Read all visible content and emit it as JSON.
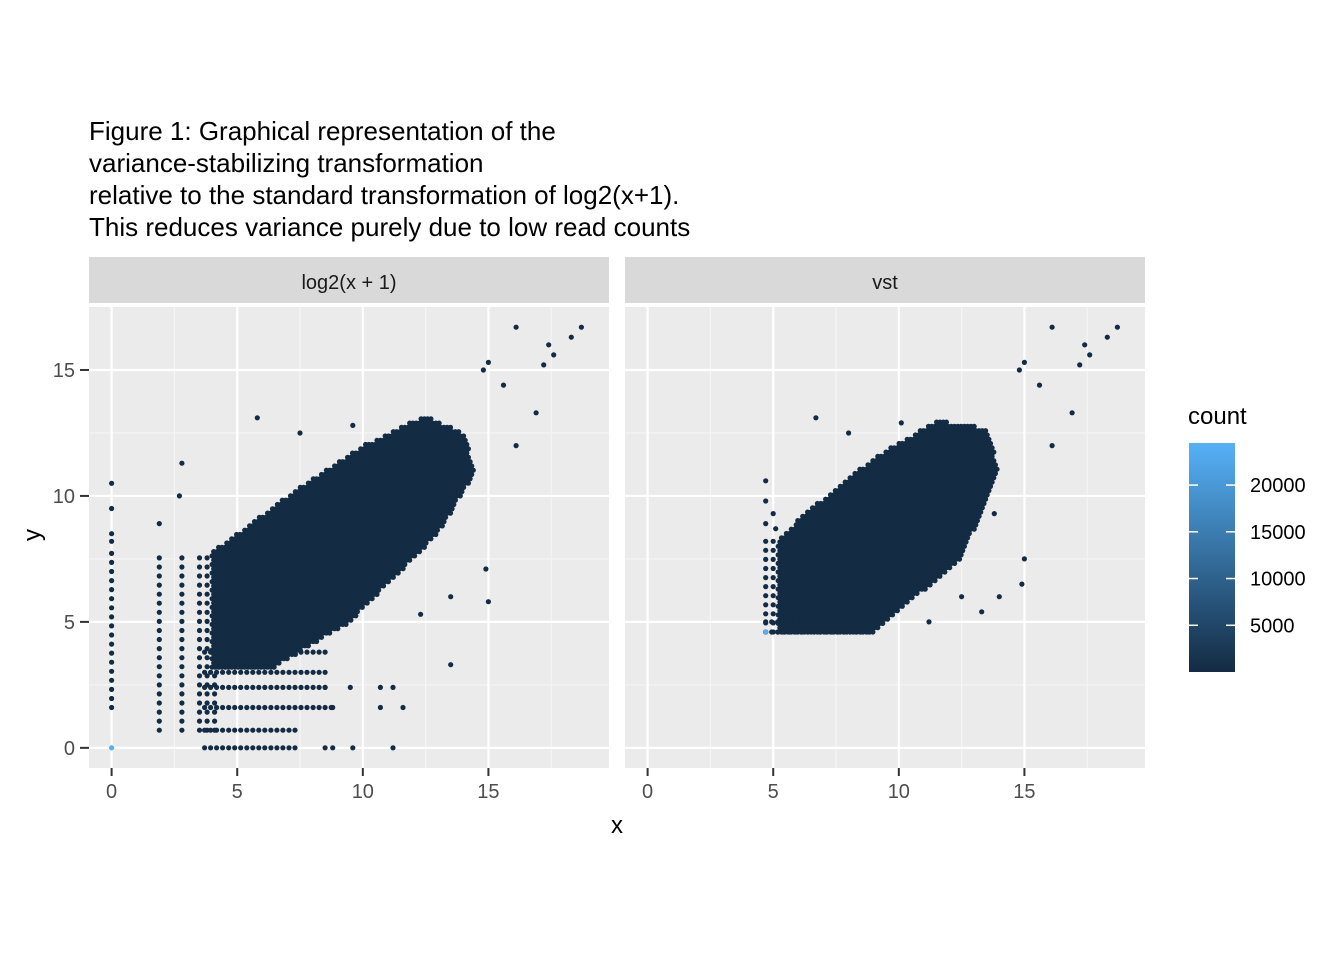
{
  "chart_data": {
    "type": "heatmap",
    "subtype": "hexbin",
    "title_lines": [
      "Figure 1: Graphical representation of the",
      "variance-stabilizing transformation",
      "relative to the standard transformation of log2(x+1).",
      "This reduces variance purely due to low read counts"
    ],
    "xlabel": "x",
    "ylabel": "y",
    "xlim": [
      -0.9,
      19.8
    ],
    "ylim": [
      -0.8,
      17.5
    ],
    "x_ticks": [
      0,
      5,
      10,
      15
    ],
    "y_ticks": [
      0,
      5,
      10,
      15
    ],
    "x_tick_labels": [
      "0",
      "5",
      "10",
      "15"
    ],
    "y_tick_labels": [
      "0",
      "5",
      "10",
      "15"
    ],
    "grid": true,
    "facets": [
      {
        "label": "log2(x + 1)",
        "dense_region": {
          "polygon": [
            [
              4.0,
              3.2
            ],
            [
              6.5,
              3.2
            ],
            [
              9.5,
              5.0
            ],
            [
              13.0,
              8.5
            ],
            [
              14.5,
              11.0
            ],
            [
              14.0,
              12.5
            ],
            [
              12.5,
              13.2
            ],
            [
              10.0,
              12.0
            ],
            [
              7.0,
              10.0
            ],
            [
              5.0,
              8.5
            ],
            [
              4.0,
              7.8
            ]
          ]
        },
        "column_bins_x": [
          0,
          1.9,
          2.8,
          3.5,
          3.8,
          4.1
        ],
        "row_bins_y": [
          0,
          0.7,
          1.6,
          2.4,
          3.0,
          3.8
        ],
        "outliers": [
          [
            0,
            10.5
          ],
          [
            0,
            9.5
          ],
          [
            0,
            8.5
          ],
          [
            0,
            8.2
          ],
          [
            1.9,
            8.9
          ],
          [
            2.8,
            11.3
          ],
          [
            2.7,
            10.0
          ],
          [
            5.8,
            13.1
          ],
          [
            7.5,
            12.5
          ],
          [
            9.6,
            12.8
          ],
          [
            13.5,
            6.0
          ],
          [
            15.0,
            5.8
          ],
          [
            14.9,
            7.1
          ],
          [
            12.3,
            5.3
          ],
          [
            13.5,
            3.3
          ],
          [
            11.2,
            2.4
          ],
          [
            11.6,
            1.6
          ],
          [
            10.7,
            1.6
          ],
          [
            11.2,
            0
          ],
          [
            16.1,
            16.7
          ],
          [
            17.4,
            16.0
          ],
          [
            18.3,
            16.3
          ],
          [
            18.7,
            16.7
          ],
          [
            16.9,
            13.3
          ],
          [
            16.1,
            12.0
          ],
          [
            17.6,
            15.6
          ],
          [
            17.2,
            15.2
          ],
          [
            15.6,
            14.4
          ],
          [
            15.0,
            15.3
          ],
          [
            14.8,
            15.0
          ],
          [
            13.3,
            9.3
          ],
          [
            8.5,
            2.4
          ],
          [
            9.5,
            2.4
          ],
          [
            10.7,
            2.4
          ],
          [
            8.8,
            1.6
          ],
          [
            9.6,
            0
          ],
          [
            8.5,
            0
          ],
          [
            8.8,
            0
          ]
        ],
        "highlight_bin": {
          "x": 0,
          "y": 0,
          "count": 24000
        }
      },
      {
        "label": "vst",
        "dense_region": {
          "polygon": [
            [
              5.2,
              4.6
            ],
            [
              9.0,
              4.6
            ],
            [
              12.5,
              7.5
            ],
            [
              14.0,
              11.0
            ],
            [
              13.5,
              12.7
            ],
            [
              11.5,
              13.0
            ],
            [
              9.0,
              11.5
            ],
            [
              6.5,
              9.5
            ],
            [
              5.2,
              8.3
            ]
          ]
        },
        "column_bins_x": [
          4.7,
          5.0
        ],
        "row_bins_y": [
          4.6,
          5.0
        ],
        "outliers": [
          [
            4.7,
            10.6
          ],
          [
            4.7,
            9.8
          ],
          [
            4.7,
            8.9
          ],
          [
            5.0,
            9.3
          ],
          [
            5.1,
            8.7
          ],
          [
            5.4,
            8.3
          ],
          [
            6.7,
            13.1
          ],
          [
            8.0,
            12.5
          ],
          [
            10.1,
            12.9
          ],
          [
            14.0,
            6.0
          ],
          [
            15.0,
            7.5
          ],
          [
            14.9,
            6.5
          ],
          [
            13.3,
            5.4
          ],
          [
            12.5,
            6.0
          ],
          [
            16.1,
            16.7
          ],
          [
            17.4,
            16.0
          ],
          [
            18.3,
            16.3
          ],
          [
            18.7,
            16.7
          ],
          [
            16.9,
            13.3
          ],
          [
            16.1,
            12.0
          ],
          [
            17.6,
            15.6
          ],
          [
            17.2,
            15.2
          ],
          [
            15.6,
            14.4
          ],
          [
            15.0,
            15.3
          ],
          [
            14.8,
            15.0
          ],
          [
            13.8,
            9.3
          ],
          [
            11.2,
            5.0
          ],
          [
            10.5,
            6.5
          ]
        ],
        "highlight_bin": {
          "x": 4.7,
          "y": 4.6,
          "count": 24000
        }
      }
    ],
    "legend": {
      "title": "count",
      "placement": "right",
      "breaks": [
        5000,
        10000,
        15000,
        20000
      ],
      "break_labels": [
        "5000",
        "10000",
        "15000",
        "20000"
      ],
      "range": [
        1,
        24500
      ],
      "color_low": "#132b43",
      "color_high": "#56b1f7"
    },
    "colors": {
      "panel_background": "#ebebeb",
      "strip_background": "#d9d9d9",
      "grid_major": "#ffffff",
      "grid_minor": "#f5f5f5"
    }
  }
}
